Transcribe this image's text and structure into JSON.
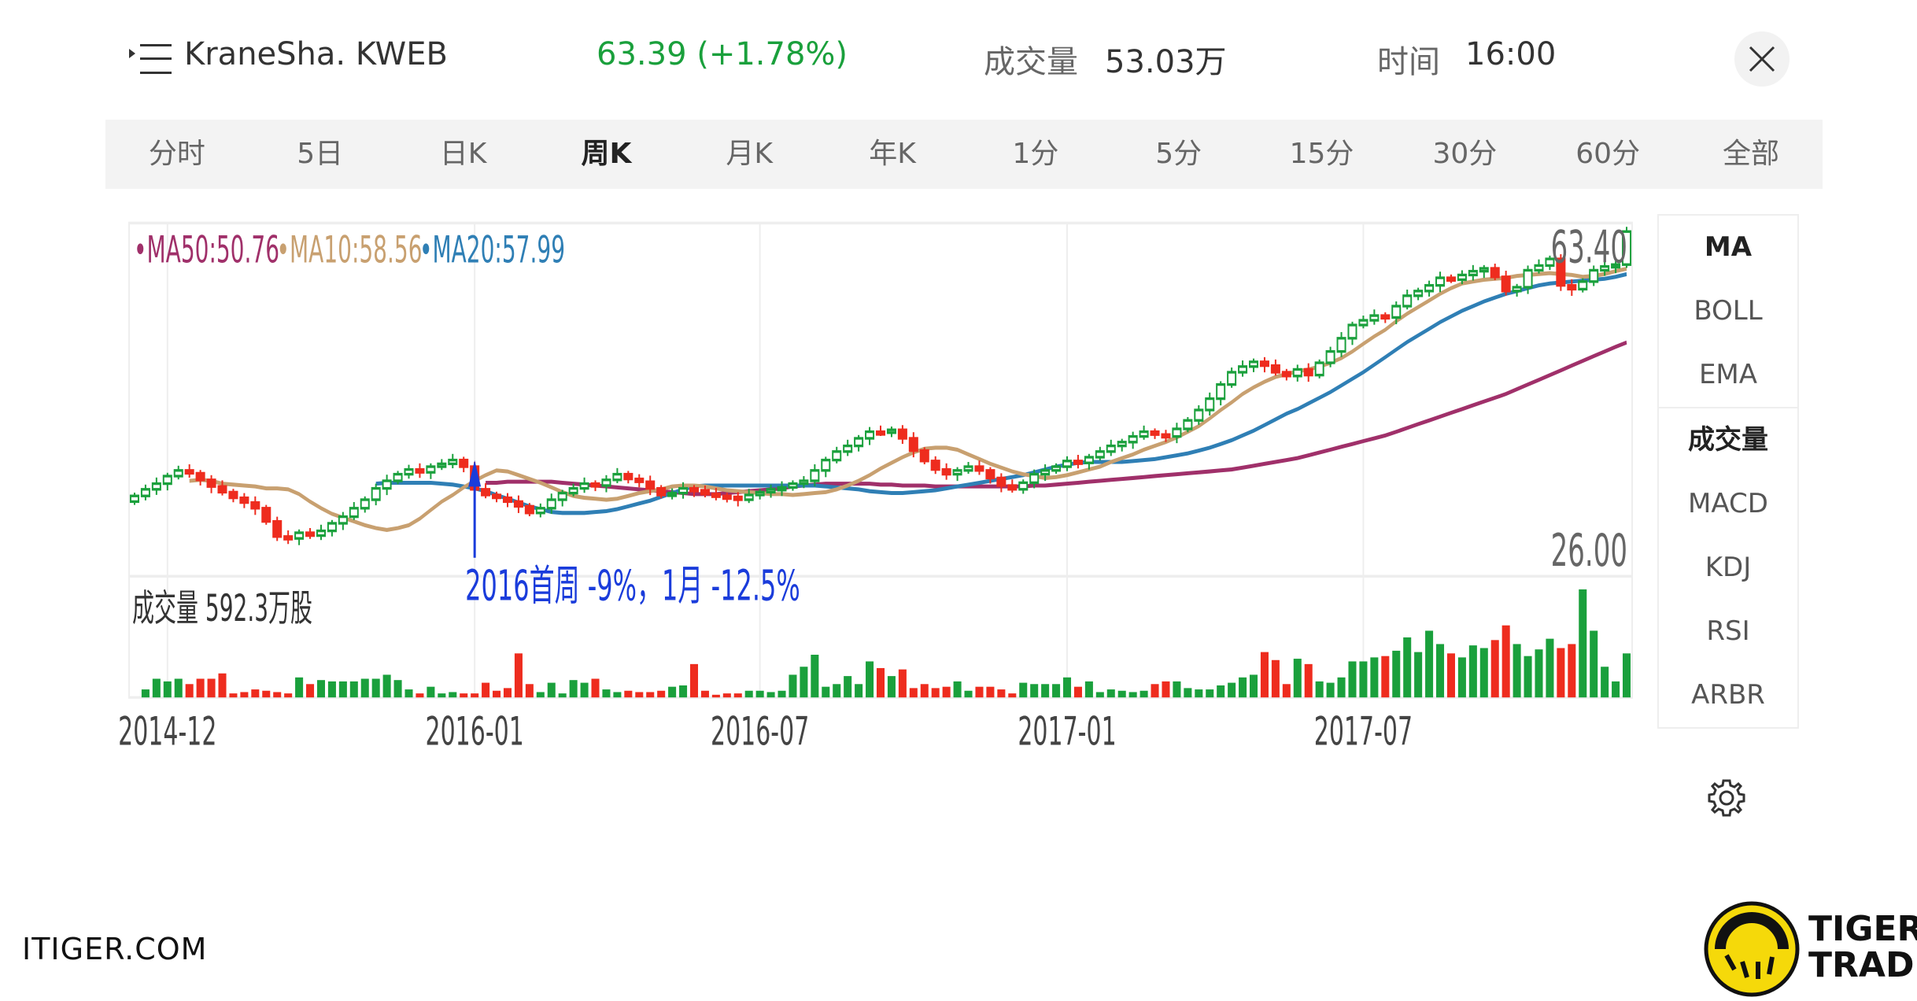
{
  "header": {
    "title": "KraneSha. KWEB",
    "price": "63.39 (+1.78%)",
    "volume_label": "成交量",
    "volume_value": "53.03万",
    "time_label": "时间",
    "time_value": "16:00"
  },
  "tabs": [
    "分时",
    "5日",
    "日K",
    "周K",
    "月K",
    "年K",
    "1分",
    "5分",
    "15分",
    "30分",
    "60分",
    "全部"
  ],
  "active_tab": "周K",
  "side_menu": {
    "top": [
      "MA",
      "BOLL",
      "EMA"
    ],
    "bottom": [
      "成交量",
      "MACD",
      "KDJ",
      "RSI",
      "ARBR"
    ]
  },
  "footer": {
    "site": "ITIGER.COM",
    "brand_line1": "TIGER",
    "brand_line2": "TRADE"
  },
  "colors": {
    "up": "#1aa03c",
    "down": "#ee2c1e",
    "ma50": "#a0306a",
    "ma10": "#c8a070",
    "ma20": "#2f7fb5",
    "annotation": "#1a3cdb"
  },
  "chart_data": {
    "type": "candlestick",
    "period": "weekly",
    "y_axis": {
      "max_label": "63.40",
      "min_label": "26.00",
      "ylim": [
        26.0,
        63.4
      ]
    },
    "legend": [
      {
        "text": "MA50:50.76",
        "color": "#a0306a"
      },
      {
        "text": "MA10:58.56",
        "color": "#c8a070"
      },
      {
        "text": "MA20:57.99",
        "color": "#2f7fb5"
      }
    ],
    "x_tick_labels": [
      {
        "label": "2014-12",
        "index": 3
      },
      {
        "label": "2016-01",
        "index": 31
      },
      {
        "label": "2016-07",
        "index": 57
      },
      {
        "label": "2017-01",
        "index": 85
      },
      {
        "label": "2017-07",
        "index": 112
      }
    ],
    "volume_label": "成交量  592.3万股",
    "annotation": {
      "text": "2016首周 -9%，1月 -12.5%",
      "index": 31
    },
    "closes": [
      34.5,
      35.2,
      35.8,
      36.6,
      37.2,
      36.9,
      36.2,
      35.5,
      34.9,
      34.3,
      33.8,
      33.2,
      31.8,
      30.2,
      30.0,
      30.6,
      30.3,
      30.8,
      31.6,
      32.3,
      33.2,
      34.1,
      35.3,
      36.1,
      36.8,
      37.3,
      37.0,
      37.6,
      37.9,
      38.3,
      37.6,
      35.2,
      34.6,
      34.3,
      33.9,
      33.4,
      32.7,
      33.2,
      34.1,
      34.8,
      35.3,
      35.8,
      35.6,
      36.2,
      36.8,
      36.3,
      36.0,
      35.3,
      34.6,
      34.8,
      35.3,
      35.1,
      34.7,
      34.5,
      34.4,
      34.1,
      34.6,
      34.9,
      35.2,
      35.4,
      35.8,
      36.1,
      37.2,
      38.3,
      39.2,
      39.8,
      40.6,
      41.3,
      41.2,
      41.5,
      40.6,
      39.3,
      38.2,
      37.3,
      36.8,
      37.2,
      37.6,
      37.2,
      36.4,
      35.6,
      35.2,
      35.9,
      36.8,
      37.2,
      37.6,
      38.2,
      38.0,
      38.6,
      39.2,
      39.8,
      40.2,
      40.8,
      41.3,
      41.0,
      40.8,
      41.6,
      42.5,
      43.6,
      44.8,
      46.3,
      47.6,
      48.2,
      48.7,
      48.3,
      47.6,
      47.2,
      47.9,
      47.3,
      48.6,
      49.8,
      51.2,
      52.6,
      53.1,
      53.6,
      53.4,
      54.6,
      55.7,
      56.2,
      56.8,
      57.6,
      57.4,
      57.9,
      58.3,
      58.6,
      57.7,
      56.2,
      56.6,
      58.4,
      58.9,
      59.6,
      56.8,
      56.4,
      57.2,
      58.4,
      58.8,
      59.0,
      62.5
    ],
    "volume_values": [
      6,
      14,
      12,
      14,
      10,
      14,
      14,
      18,
      3,
      4,
      6,
      5,
      4,
      3,
      15,
      10,
      13,
      12,
      12,
      12,
      14,
      14,
      17,
      13,
      6,
      3,
      8,
      3,
      4,
      3,
      3,
      11,
      5,
      7,
      33,
      10,
      4,
      11,
      3,
      13,
      11,
      14,
      6,
      4,
      5,
      4,
      4,
      5,
      8,
      9,
      25,
      5,
      2,
      3,
      3,
      5,
      5,
      4,
      5,
      17,
      23,
      32,
      8,
      10,
      16,
      10,
      27,
      22,
      16,
      21,
      7,
      10,
      7,
      8,
      12,
      5,
      8,
      8,
      6,
      3,
      11,
      10,
      10,
      10,
      15,
      8,
      12,
      4,
      6,
      5,
      4,
      5,
      10,
      12,
      12,
      7,
      6,
      6,
      9,
      11,
      15,
      17,
      34,
      28,
      10,
      29,
      25,
      12,
      11,
      15,
      27,
      27,
      30,
      31,
      35,
      45,
      34,
      50,
      40,
      33,
      30,
      39,
      37,
      43,
      54,
      40,
      31,
      36,
      44,
      37,
      40,
      81,
      50,
      23,
      12,
      33
    ],
    "ma10": [
      36.1,
      36.2,
      36.1,
      35.8,
      35.7,
      35.6,
      35.5,
      35.3,
      35.3,
      35.2,
      34.7,
      33.9,
      33.2,
      32.6,
      32.2,
      31.8,
      31.4,
      31.1,
      30.9,
      31.1,
      31.4,
      32.1,
      33.0,
      33.9,
      34.6,
      35.4,
      36.1,
      36.7,
      37.2,
      37.1,
      36.7,
      36.3,
      35.9,
      35.4,
      34.9,
      34.5,
      34.3,
      34.2,
      34.1,
      34.2,
      34.5,
      34.8,
      35.0,
      35.2,
      35.5,
      35.6,
      35.6,
      35.5,
      35.3,
      35.1,
      35.0,
      34.9,
      34.8,
      34.7,
      34.7,
      34.6,
      34.7,
      34.8,
      34.9,
      35.2,
      35.6,
      36.1,
      36.7,
      37.4,
      38.0,
      38.6,
      39.1,
      39.5,
      39.6,
      39.6,
      39.4,
      38.9,
      38.4,
      37.9,
      37.5,
      37.1,
      36.8,
      36.6,
      36.4,
      36.5,
      36.7,
      37.0,
      37.3,
      37.6,
      38.1,
      38.5,
      38.9,
      39.4,
      39.8,
      40.2,
      40.7,
      41.3,
      41.9,
      42.7,
      43.6,
      44.4,
      45.3,
      46.0,
      46.6,
      47.1,
      47.4,
      47.7,
      47.9,
      48.2,
      48.6,
      49.1,
      49.8,
      50.6,
      51.4,
      52.1,
      53.0,
      53.8,
      54.5,
      55.2,
      55.9,
      56.5,
      57.0,
      57.2,
      57.4,
      57.5,
      57.6,
      57.8,
      57.9,
      58.0,
      58.1,
      58.0,
      57.9,
      57.7,
      57.8,
      58.0,
      58.3,
      58.56
    ],
    "ma20": [
      35.8,
      35.9,
      35.9,
      35.9,
      35.9,
      35.9,
      35.8,
      35.7,
      35.5,
      35.3,
      35.0,
      34.6,
      34.2,
      33.8,
      33.4,
      33.1,
      32.8,
      32.7,
      32.7,
      32.7,
      32.8,
      32.9,
      33.1,
      33.4,
      33.7,
      34.0,
      34.4,
      34.8,
      35.2,
      35.5,
      35.6,
      35.6,
      35.6,
      35.6,
      35.6,
      35.6,
      35.6,
      35.6,
      35.6,
      35.6,
      35.6,
      35.5,
      35.4,
      35.3,
      35.2,
      35.0,
      34.9,
      34.8,
      34.8,
      34.9,
      35.0,
      35.1,
      35.3,
      35.5,
      35.7,
      35.9,
      36.1,
      36.3,
      36.5,
      36.7,
      37.0,
      37.3,
      37.6,
      37.8,
      38.0,
      38.1,
      38.1,
      38.1,
      38.1,
      38.2,
      38.3,
      38.4,
      38.6,
      38.8,
      39.0,
      39.3,
      39.6,
      40.0,
      40.4,
      40.9,
      41.4,
      42.0,
      42.6,
      43.2,
      43.7,
      44.3,
      44.9,
      45.5,
      46.2,
      46.9,
      47.6,
      48.4,
      49.2,
      50.0,
      50.8,
      51.5,
      52.2,
      52.9,
      53.5,
      54.1,
      54.6,
      55.1,
      55.5,
      55.9,
      56.2,
      56.5,
      56.8,
      57.0,
      57.1,
      57.2,
      57.3,
      57.4,
      57.5,
      57.7,
      57.99
    ],
    "ma50": [
      35.9,
      35.9,
      36.0,
      36.0,
      36.0,
      36.0,
      36.0,
      35.9,
      35.8,
      35.7,
      35.6,
      35.5,
      35.4,
      35.3,
      35.2,
      35.1,
      35.0,
      34.9,
      34.8,
      34.7,
      34.7,
      34.7,
      34.8,
      34.9,
      35.0,
      35.1,
      35.2,
      35.3,
      35.5,
      35.6,
      35.7,
      35.8,
      35.8,
      35.8,
      35.8,
      35.8,
      35.7,
      35.7,
      35.6,
      35.6,
      35.6,
      35.5,
      35.5,
      35.5,
      35.5,
      35.5,
      35.5,
      35.5,
      35.5,
      35.5,
      35.6,
      35.6,
      35.7,
      35.8,
      35.9,
      36.0,
      36.1,
      36.2,
      36.3,
      36.4,
      36.5,
      36.6,
      36.7,
      36.8,
      36.9,
      37.0,
      37.1,
      37.2,
      37.3,
      37.5,
      37.7,
      37.9,
      38.1,
      38.3,
      38.5,
      38.8,
      39.1,
      39.4,
      39.7,
      40.0,
      40.3,
      40.6,
      40.9,
      41.3,
      41.7,
      42.1,
      42.5,
      42.9,
      43.3,
      43.7,
      44.1,
      44.5,
      44.9,
      45.3,
      45.8,
      46.3,
      46.8,
      47.3,
      47.8,
      48.3,
      48.8,
      49.3,
      49.8,
      50.3,
      50.76
    ]
  }
}
